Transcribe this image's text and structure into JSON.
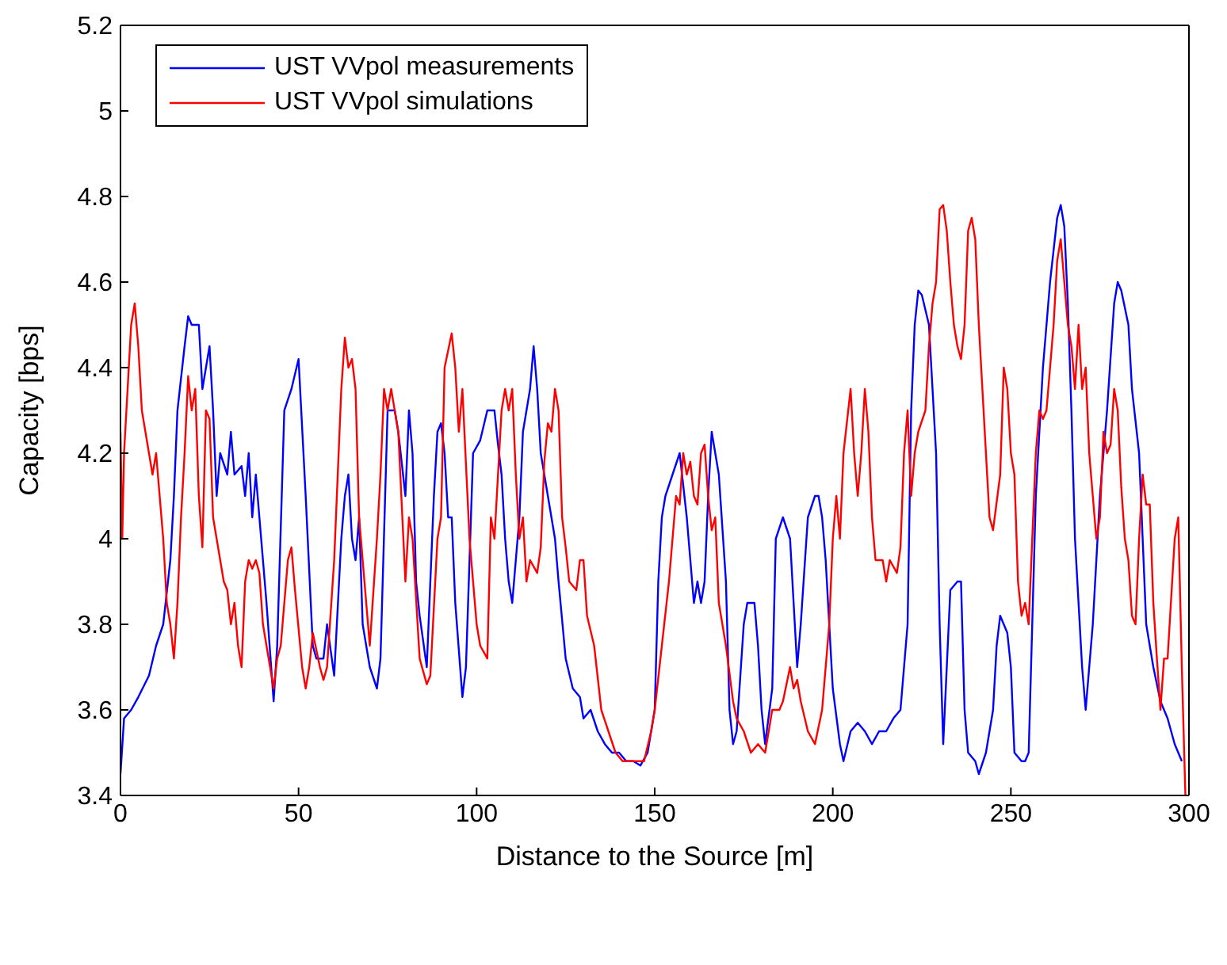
{
  "chart_data": {
    "type": "line",
    "xlabel": "Distance to the Source [m]",
    "ylabel": "Capacity [bps]",
    "xlim": [
      0,
      300
    ],
    "xticks": [
      0,
      50,
      100,
      150,
      200,
      250,
      300
    ],
    "ylim": [
      3.4,
      5.2
    ],
    "yticks": [
      3.4,
      3.6,
      3.8,
      4,
      4.2,
      4.4,
      4.6,
      4.8,
      5,
      5.2
    ],
    "grid": false,
    "legend": "top left",
    "marker": "none",
    "line_style": "solid",
    "series": [
      {
        "name": "UST VVpol measurements",
        "color": "#0000ff",
        "x": [
          0,
          1,
          3,
          5,
          8,
          10,
          12,
          14,
          15,
          16,
          18,
          19,
          20,
          22,
          23,
          25,
          26,
          27,
          28,
          30,
          31,
          32,
          34,
          35,
          36,
          37,
          38,
          40,
          41,
          43,
          44,
          46,
          48,
          50,
          52,
          54,
          55,
          57,
          58,
          60,
          62,
          63,
          64,
          65,
          66,
          67,
          68,
          70,
          72,
          73,
          75,
          77,
          78,
          80,
          81,
          82,
          83,
          84,
          86,
          88,
          89,
          90,
          91,
          92,
          93,
          94,
          96,
          97,
          99,
          101,
          103,
          105,
          106,
          107,
          108,
          109,
          110,
          112,
          113,
          115,
          116,
          117,
          118,
          120,
          122,
          123,
          125,
          127,
          129,
          130,
          132,
          134,
          136,
          138,
          140,
          142,
          144,
          146,
          148,
          150,
          151,
          152,
          153,
          155,
          157,
          159,
          160,
          161,
          162,
          163,
          164,
          165,
          166,
          167,
          168,
          170,
          171,
          172,
          173,
          175,
          176,
          178,
          179,
          180,
          181,
          183,
          184,
          186,
          188,
          189,
          190,
          191,
          193,
          195,
          196,
          197,
          198,
          200,
          202,
          203,
          205,
          207,
          209,
          211,
          213,
          215,
          217,
          219,
          221,
          222,
          223,
          224,
          225,
          227,
          229,
          230,
          231,
          232,
          233,
          235,
          236,
          237,
          238,
          240,
          241,
          243,
          245,
          246,
          247,
          249,
          250,
          251,
          253,
          254,
          255,
          256,
          257,
          259,
          261,
          263,
          264,
          265,
          266,
          267,
          268,
          270,
          271,
          272,
          273,
          275,
          277,
          279,
          280,
          281,
          283,
          284,
          286,
          287,
          288,
          290,
          292,
          294,
          295,
          296,
          297,
          298
        ],
        "values": [
          3.45,
          3.58,
          3.6,
          3.63,
          3.68,
          3.75,
          3.8,
          3.95,
          4.1,
          4.3,
          4.45,
          4.52,
          4.5,
          4.5,
          4.35,
          4.45,
          4.3,
          4.1,
          4.2,
          4.15,
          4.25,
          4.15,
          4.17,
          4.1,
          4.2,
          4.05,
          4.15,
          3.95,
          3.85,
          3.62,
          3.75,
          4.3,
          4.35,
          4.42,
          4.1,
          3.75,
          3.72,
          3.72,
          3.8,
          3.68,
          4.0,
          4.1,
          4.15,
          4.0,
          3.95,
          4.05,
          3.8,
          3.7,
          3.65,
          3.72,
          4.3,
          4.3,
          4.25,
          4.1,
          4.3,
          4.2,
          3.9,
          3.82,
          3.7,
          4.1,
          4.25,
          4.27,
          4.2,
          4.05,
          4.05,
          3.85,
          3.63,
          3.7,
          4.2,
          4.23,
          4.3,
          4.3,
          4.22,
          4.15,
          4.0,
          3.9,
          3.85,
          4.05,
          4.25,
          4.35,
          4.45,
          4.35,
          4.2,
          4.1,
          4.0,
          3.9,
          3.72,
          3.65,
          3.63,
          3.58,
          3.6,
          3.55,
          3.52,
          3.5,
          3.5,
          3.48,
          3.48,
          3.47,
          3.5,
          3.6,
          3.9,
          4.05,
          4.1,
          4.15,
          4.2,
          4.05,
          3.95,
          3.85,
          3.9,
          3.85,
          3.9,
          4.1,
          4.25,
          4.2,
          4.15,
          3.9,
          3.6,
          3.52,
          3.55,
          3.8,
          3.85,
          3.85,
          3.75,
          3.6,
          3.52,
          3.65,
          4.0,
          4.05,
          4.0,
          3.85,
          3.7,
          3.8,
          4.05,
          4.1,
          4.1,
          4.05,
          3.95,
          3.65,
          3.52,
          3.48,
          3.55,
          3.57,
          3.55,
          3.52,
          3.55,
          3.55,
          3.58,
          3.6,
          3.8,
          4.3,
          4.5,
          4.58,
          4.57,
          4.5,
          4.2,
          3.8,
          3.52,
          3.7,
          3.88,
          3.9,
          3.9,
          3.6,
          3.5,
          3.48,
          3.45,
          3.5,
          3.6,
          3.75,
          3.82,
          3.78,
          3.7,
          3.5,
          3.48,
          3.48,
          3.5,
          3.8,
          4.1,
          4.4,
          4.6,
          4.75,
          4.78,
          4.73,
          4.55,
          4.3,
          4.0,
          3.7,
          3.6,
          3.7,
          3.8,
          4.1,
          4.3,
          4.55,
          4.6,
          4.58,
          4.5,
          4.35,
          4.2,
          4.0,
          3.8,
          3.7,
          3.62,
          3.58,
          3.55,
          3.52,
          3.5,
          3.48
        ]
      },
      {
        "name": "UST VVpol simulations",
        "color": "#ff0000",
        "x": [
          0,
          0.5,
          1,
          2,
          3,
          4,
          5,
          6,
          7,
          8,
          9,
          10,
          11,
          12,
          13,
          14,
          15,
          16,
          17,
          18,
          19,
          20,
          21,
          22,
          23,
          24,
          25,
          26,
          27,
          28,
          29,
          30,
          31,
          32,
          33,
          34,
          35,
          36,
          37,
          38,
          39,
          40,
          42,
          43,
          44,
          45,
          47,
          48,
          49,
          51,
          52,
          53,
          54,
          56,
          57,
          58,
          60,
          61,
          62,
          63,
          64,
          65,
          66,
          67,
          69,
          70,
          72,
          73,
          74,
          75,
          76,
          78,
          80,
          81,
          82,
          84,
          86,
          87,
          89,
          90,
          91,
          93,
          94,
          95,
          96,
          98,
          99,
          100,
          101,
          103,
          104,
          105,
          106,
          107,
          108,
          109,
          110,
          111,
          112,
          113,
          114,
          115,
          117,
          118,
          119,
          120,
          121,
          122,
          123,
          124,
          125,
          126,
          128,
          129,
          130,
          131,
          133,
          135,
          137,
          139,
          141,
          143,
          145,
          147,
          149,
          150,
          152,
          154,
          155,
          156,
          157,
          158,
          159,
          160,
          161,
          162,
          163,
          164,
          165,
          166,
          167,
          168,
          170,
          172,
          173,
          175,
          177,
          179,
          181,
          183,
          185,
          186,
          188,
          189,
          190,
          191,
          193,
          195,
          197,
          199,
          200,
          201,
          202,
          203,
          205,
          206,
          207,
          208,
          209,
          210,
          211,
          212,
          214,
          215,
          216,
          218,
          219,
          220,
          221,
          222,
          223,
          224,
          226,
          227,
          228,
          229,
          230,
          231,
          232,
          233,
          234,
          235,
          236,
          237,
          238,
          239,
          240,
          241,
          243,
          244,
          245,
          247,
          248,
          249,
          250,
          251,
          252,
          253,
          254,
          255,
          257,
          258,
          259,
          260,
          261,
          262,
          263,
          264,
          265,
          266,
          267,
          268,
          269,
          270,
          271,
          272,
          273,
          274,
          275,
          276,
          277,
          278,
          279,
          280,
          281,
          282,
          283,
          284,
          285,
          286,
          287,
          288,
          289,
          290,
          291,
          292,
          293,
          294,
          296,
          297,
          298,
          299
        ],
        "values": [
          4.25,
          4.0,
          4.2,
          4.35,
          4.5,
          4.55,
          4.45,
          4.3,
          4.25,
          4.2,
          4.15,
          4.2,
          4.1,
          4.0,
          3.85,
          3.8,
          3.72,
          3.85,
          4.05,
          4.2,
          4.38,
          4.3,
          4.35,
          4.1,
          3.98,
          4.3,
          4.28,
          4.05,
          4.0,
          3.95,
          3.9,
          3.88,
          3.8,
          3.85,
          3.75,
          3.7,
          3.9,
          3.95,
          3.93,
          3.95,
          3.92,
          3.8,
          3.7,
          3.65,
          3.72,
          3.75,
          3.95,
          3.98,
          3.88,
          3.7,
          3.65,
          3.7,
          3.78,
          3.7,
          3.67,
          3.7,
          3.95,
          4.15,
          4.35,
          4.47,
          4.4,
          4.42,
          4.35,
          4.05,
          3.85,
          3.75,
          4.0,
          4.15,
          4.35,
          4.3,
          4.35,
          4.25,
          3.9,
          4.05,
          4.0,
          3.72,
          3.66,
          3.68,
          4.0,
          4.05,
          4.4,
          4.48,
          4.4,
          4.25,
          4.35,
          4.0,
          3.9,
          3.8,
          3.75,
          3.72,
          4.05,
          4.0,
          4.15,
          4.3,
          4.35,
          4.3,
          4.35,
          4.15,
          4.0,
          4.05,
          3.9,
          3.95,
          3.92,
          3.98,
          4.18,
          4.27,
          4.25,
          4.35,
          4.3,
          4.05,
          3.98,
          3.9,
          3.88,
          3.95,
          3.95,
          3.82,
          3.75,
          3.6,
          3.55,
          3.5,
          3.48,
          3.48,
          3.48,
          3.48,
          3.55,
          3.6,
          3.75,
          3.9,
          4.0,
          4.1,
          4.08,
          4.2,
          4.15,
          4.18,
          4.1,
          4.08,
          4.2,
          4.22,
          4.1,
          4.02,
          4.05,
          3.85,
          3.75,
          3.62,
          3.58,
          3.55,
          3.5,
          3.52,
          3.5,
          3.6,
          3.6,
          3.62,
          3.7,
          3.65,
          3.67,
          3.62,
          3.55,
          3.52,
          3.6,
          3.8,
          4.0,
          4.1,
          4.0,
          4.2,
          4.35,
          4.2,
          4.1,
          4.2,
          4.35,
          4.25,
          4.05,
          3.95,
          3.95,
          3.9,
          3.95,
          3.92,
          3.98,
          4.2,
          4.3,
          4.1,
          4.2,
          4.25,
          4.3,
          4.45,
          4.55,
          4.6,
          4.77,
          4.78,
          4.72,
          4.6,
          4.5,
          4.45,
          4.42,
          4.5,
          4.72,
          4.75,
          4.7,
          4.5,
          4.2,
          4.05,
          4.02,
          4.15,
          4.4,
          4.35,
          4.2,
          4.15,
          3.9,
          3.82,
          3.85,
          3.8,
          4.2,
          4.3,
          4.28,
          4.3,
          4.4,
          4.5,
          4.65,
          4.7,
          4.6,
          4.5,
          4.45,
          4.35,
          4.5,
          4.35,
          4.4,
          4.2,
          4.1,
          4.0,
          4.05,
          4.25,
          4.2,
          4.22,
          4.35,
          4.3,
          4.12,
          4.0,
          3.95,
          3.82,
          3.8,
          4.0,
          4.15,
          4.08,
          4.08,
          3.85,
          3.72,
          3.6,
          3.72,
          3.72,
          4.0,
          4.05,
          3.7,
          3.4
        ]
      }
    ]
  }
}
